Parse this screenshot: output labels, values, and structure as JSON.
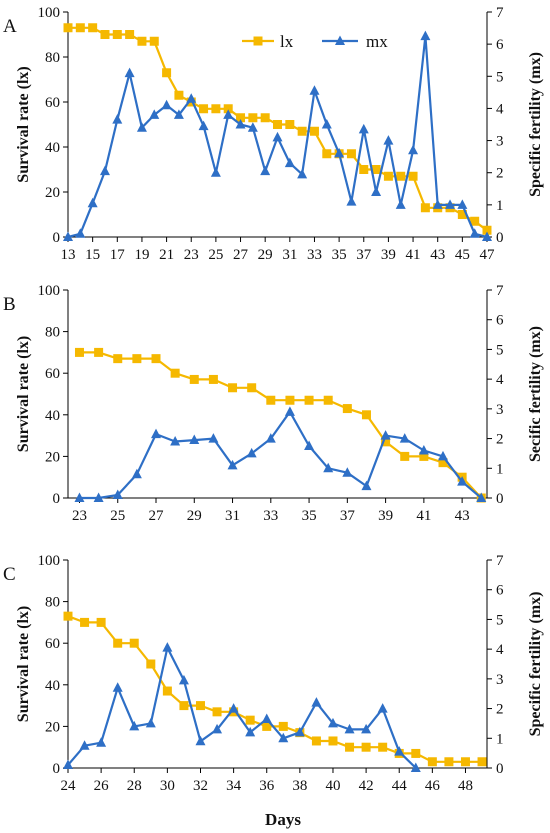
{
  "colors": {
    "lx": "#F5B800",
    "mx": "#2E6FC6",
    "axis": "#000000"
  },
  "legend": {
    "position": "top-center",
    "entries": [
      "lx",
      "mx"
    ]
  },
  "xlabel": "Days",
  "chart_data": [
    {
      "panel": "A",
      "type": "line",
      "ylabel": "Survival rate (lx)",
      "y2label": "Specific fertility (mx)",
      "xlim": [
        13,
        47
      ],
      "ylim": [
        0,
        100
      ],
      "y2lim": [
        0,
        7
      ],
      "xticks": [
        "13",
        "15",
        "17",
        "19",
        "21",
        "23",
        "25",
        "27",
        "29",
        "31",
        "33",
        "35",
        "37",
        "39",
        "41",
        "43",
        "45",
        "47"
      ],
      "yticks": [
        "0",
        "20",
        "40",
        "60",
        "80",
        "100"
      ],
      "y2ticks": [
        "0",
        "1",
        "2",
        "3",
        "4",
        "5",
        "6",
        "7"
      ],
      "series": [
        {
          "name": "lx",
          "axis": "left",
          "x": [
            13,
            14,
            15,
            16,
            17,
            18,
            19,
            20,
            21,
            22,
            23,
            24,
            25,
            26,
            27,
            28,
            29,
            30,
            31,
            32,
            33,
            34,
            35,
            36,
            37,
            38,
            39,
            40,
            41,
            42,
            43,
            44,
            45,
            46,
            47
          ],
          "values": [
            93,
            93,
            93,
            90,
            90,
            90,
            87,
            87,
            73,
            63,
            60,
            57,
            57,
            57,
            53,
            53,
            53,
            50,
            50,
            47,
            47,
            37,
            37,
            37,
            30,
            30,
            27,
            27,
            27,
            13,
            13,
            13,
            10,
            7,
            3
          ]
        },
        {
          "name": "mx",
          "axis": "right",
          "x": [
            13,
            14,
            15,
            16,
            17,
            18,
            19,
            20,
            21,
            22,
            23,
            24,
            25,
            26,
            27,
            28,
            29,
            30,
            31,
            32,
            33,
            34,
            35,
            36,
            37,
            38,
            39,
            40,
            41,
            42,
            43,
            44,
            45,
            46,
            47
          ],
          "values": [
            0,
            0.1,
            1.05,
            2.05,
            3.65,
            5.1,
            3.4,
            3.8,
            4.1,
            3.8,
            4.3,
            3.45,
            2.0,
            3.8,
            3.5,
            3.4,
            2.05,
            3.1,
            2.3,
            1.95,
            4.55,
            3.5,
            2.6,
            1.1,
            3.35,
            1.4,
            3.0,
            1.0,
            2.7,
            6.25,
            1.0,
            1.0,
            1.0,
            0.1,
            0
          ]
        }
      ]
    },
    {
      "panel": "B",
      "type": "line",
      "ylabel": "Survival rate (lx)",
      "y2label": "Secific fertility (mx)",
      "xlim": [
        22.4,
        44.3
      ],
      "ylim": [
        0,
        100
      ],
      "y2lim": [
        0,
        7
      ],
      "xticks": [
        "23",
        "25",
        "27",
        "29",
        "31",
        "33",
        "35",
        "37",
        "39",
        "41",
        "43"
      ],
      "yticks": [
        "0",
        "20",
        "40",
        "60",
        "80",
        "100"
      ],
      "y2ticks": [
        "0",
        "1",
        "2",
        "3",
        "4",
        "5",
        "6",
        "7"
      ],
      "series": [
        {
          "name": "lx",
          "axis": "left",
          "x": [
            23,
            24,
            25,
            26,
            27,
            28,
            29,
            30,
            31,
            32,
            33,
            34,
            35,
            36,
            37,
            38,
            39,
            40,
            41,
            42,
            43,
            44
          ],
          "values": [
            70,
            70,
            67,
            67,
            67,
            60,
            57,
            57,
            53,
            53,
            47,
            47,
            47,
            47,
            43,
            40,
            27,
            20,
            20,
            17,
            10,
            0
          ]
        },
        {
          "name": "mx",
          "axis": "right",
          "x": [
            23,
            24,
            25,
            26,
            27,
            28,
            29,
            30,
            31,
            32,
            33,
            34,
            35,
            36,
            37,
            38,
            39,
            40,
            41,
            42,
            43,
            44
          ],
          "values": [
            0,
            0,
            0.1,
            0.8,
            2.15,
            1.9,
            1.95,
            2.0,
            1.1,
            1.5,
            2.0,
            2.9,
            1.75,
            1.0,
            0.85,
            0.4,
            2.1,
            2.0,
            1.6,
            1.4,
            0.55,
            0
          ]
        }
      ]
    },
    {
      "panel": "C",
      "type": "line",
      "ylabel": "Survival rate (lx)",
      "y2label": "Specific fertility (mx)",
      "xlim": [
        24,
        49.3
      ],
      "ylim": [
        0,
        100
      ],
      "y2lim": [
        0,
        7
      ],
      "xticks": [
        "24",
        "26",
        "28",
        "30",
        "32",
        "34",
        "36",
        "38",
        "40",
        "42",
        "44",
        "46",
        "48"
      ],
      "yticks": [
        "0",
        "20",
        "40",
        "60",
        "80",
        "100"
      ],
      "y2ticks": [
        "0",
        "1",
        "2",
        "3",
        "4",
        "5",
        "6",
        "7"
      ],
      "series": [
        {
          "name": "lx",
          "axis": "left",
          "x": [
            24,
            25,
            26,
            27,
            28,
            29,
            30,
            31,
            32,
            33,
            34,
            35,
            36,
            37,
            38,
            39,
            40,
            41,
            42,
            43,
            44,
            45,
            46,
            47,
            48,
            49
          ],
          "values": [
            73,
            70,
            70,
            60,
            60,
            50,
            37,
            30,
            30,
            27,
            27,
            23,
            20,
            20,
            17,
            13,
            13,
            10,
            10,
            10,
            7,
            7,
            3,
            3,
            3,
            3
          ]
        },
        {
          "name": "mx",
          "axis": "right",
          "x": [
            24,
            25,
            26,
            27,
            28,
            29,
            30,
            31,
            32,
            33,
            34,
            35,
            36,
            37,
            38,
            39,
            40,
            41,
            42,
            43,
            44,
            45
          ],
          "values": [
            0.1,
            0.75,
            0.85,
            2.7,
            1.4,
            1.5,
            4.05,
            2.95,
            0.9,
            1.3,
            2.0,
            1.2,
            1.65,
            1.0,
            1.2,
            2.2,
            1.5,
            1.3,
            1.3,
            2.0,
            0.55,
            0
          ]
        }
      ]
    }
  ]
}
